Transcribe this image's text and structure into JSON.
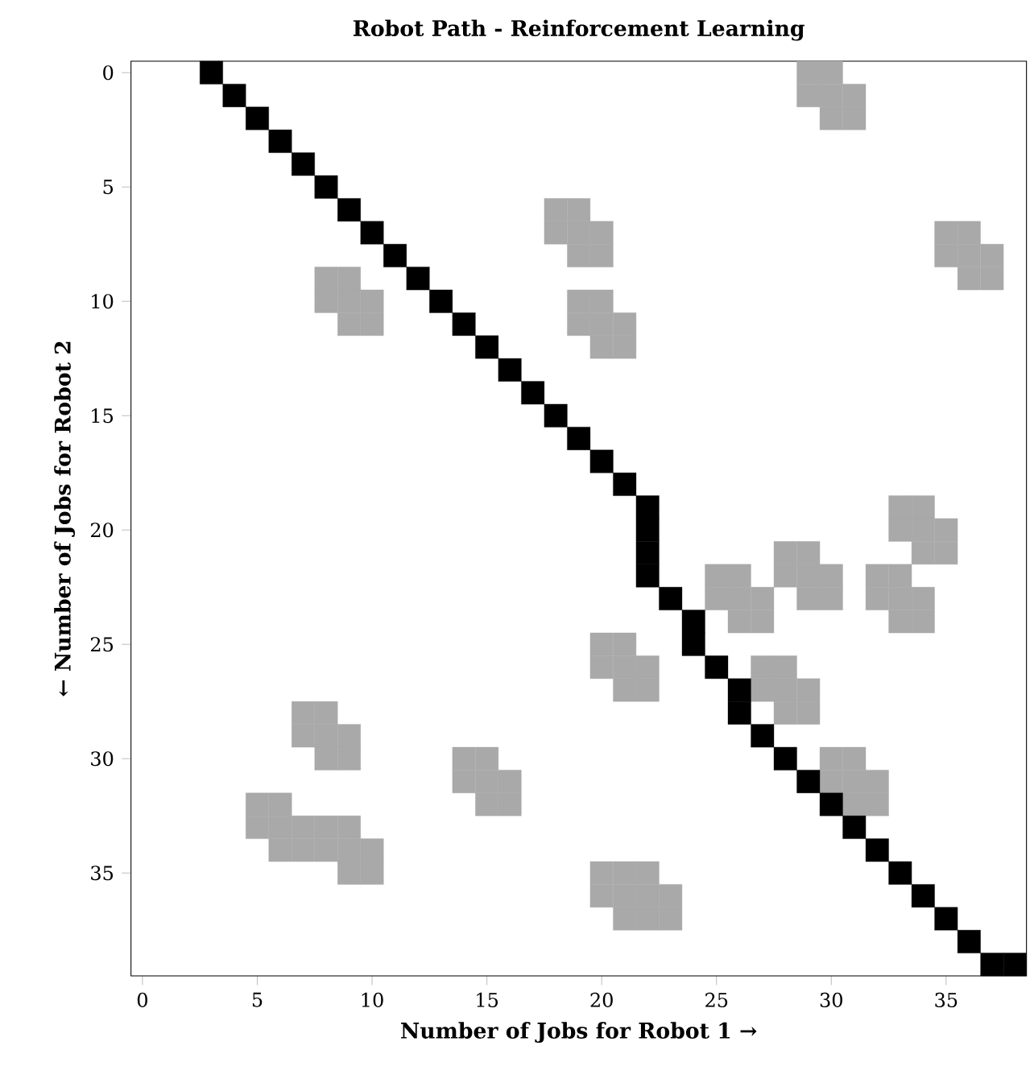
{
  "chart_data": {
    "type": "scatter",
    "title": "Robot Path - Reinforcement Learning",
    "xlabel": "Number of Jobs for Robot 1 →",
    "ylabel": "← Number of Jobs for Robot 2",
    "marker": "square",
    "xlim": [
      -0.5,
      38.5
    ],
    "ylim": [
      39.5,
      -0.5
    ],
    "xticks": [
      0,
      5,
      10,
      15,
      20,
      25,
      30,
      35
    ],
    "yticks": [
      0,
      5,
      10,
      15,
      20,
      25,
      30,
      35
    ],
    "series": [
      {
        "color": "#a9a9a9",
        "x": [
          8,
          9,
          8,
          9,
          10,
          9,
          10,
          18,
          19,
          18,
          19,
          20,
          19,
          20,
          19,
          20,
          19,
          20,
          21,
          20,
          21,
          29,
          30,
          29,
          30,
          31,
          30,
          31,
          35,
          36,
          35,
          36,
          37,
          36,
          37,
          33,
          34,
          33,
          34,
          35,
          34,
          35,
          32,
          33,
          32,
          33,
          34,
          33,
          34,
          28,
          29,
          28,
          29,
          30,
          29,
          30,
          25,
          26,
          25,
          26,
          27,
          26,
          27,
          27,
          28,
          27,
          28,
          29,
          28,
          29,
          20,
          21,
          20,
          21,
          22,
          21,
          22,
          30,
          31,
          30,
          31,
          32,
          31,
          32,
          20,
          21,
          22,
          20,
          21,
          22,
          23,
          21,
          22,
          23,
          7,
          8,
          7,
          8,
          9,
          8,
          9,
          14,
          15,
          14,
          15,
          16,
          15,
          16,
          5,
          6,
          5,
          6,
          7,
          6,
          7,
          8,
          9,
          8,
          9,
          10,
          9,
          10
        ],
        "values": [
          9,
          9,
          10,
          10,
          10,
          11,
          11,
          6,
          6,
          7,
          7,
          7,
          8,
          8,
          10,
          10,
          11,
          11,
          11,
          12,
          12,
          0,
          0,
          1,
          1,
          1,
          2,
          2,
          7,
          7,
          8,
          8,
          8,
          9,
          9,
          19,
          19,
          20,
          20,
          20,
          21,
          21,
          22,
          22,
          23,
          23,
          23,
          24,
          24,
          21,
          21,
          22,
          22,
          22,
          23,
          23,
          22,
          22,
          23,
          23,
          23,
          24,
          24,
          26,
          26,
          27,
          27,
          27,
          28,
          28,
          25,
          25,
          26,
          26,
          26,
          27,
          27,
          30,
          30,
          31,
          31,
          31,
          32,
          32,
          35,
          35,
          35,
          36,
          36,
          36,
          36,
          37,
          37,
          37,
          28,
          28,
          29,
          29,
          29,
          30,
          30,
          30,
          30,
          31,
          31,
          31,
          32,
          32,
          32,
          32,
          33,
          33,
          33,
          34,
          34,
          33,
          33,
          34,
          34,
          34,
          35,
          35
        ]
      },
      {
        "color": "#000000",
        "x": [
          3,
          4,
          5,
          6,
          7,
          8,
          9,
          10,
          11,
          12,
          13,
          14,
          15,
          16,
          17,
          18,
          19,
          20,
          21,
          22,
          22,
          22,
          22,
          23,
          24,
          24,
          25,
          26,
          26,
          27,
          28,
          29,
          30,
          31,
          32,
          33,
          34,
          35,
          36,
          37,
          38
        ],
        "values": [
          0,
          1,
          2,
          3,
          4,
          5,
          6,
          7,
          8,
          9,
          10,
          11,
          12,
          13,
          14,
          15,
          16,
          17,
          18,
          19,
          20,
          21,
          22,
          23,
          24,
          25,
          26,
          27,
          28,
          29,
          30,
          31,
          32,
          33,
          34,
          35,
          36,
          37,
          38,
          39,
          39
        ]
      }
    ]
  }
}
